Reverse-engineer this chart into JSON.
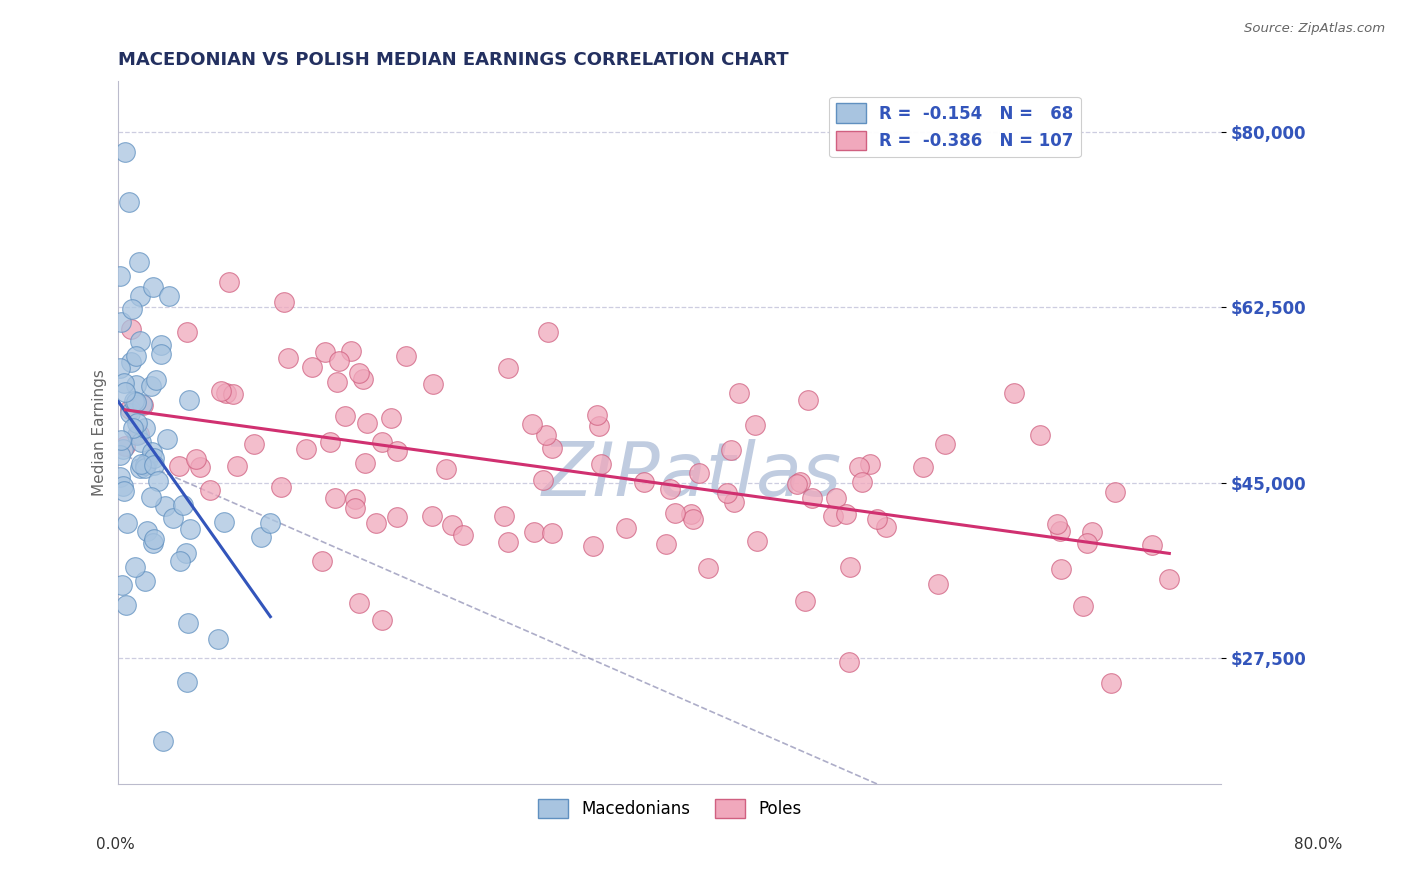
{
  "title": "MACEDONIAN VS POLISH MEDIAN EARNINGS CORRELATION CHART",
  "source_text": "Source: ZipAtlas.com",
  "ylabel": "Median Earnings",
  "y_ticks": [
    27500,
    45000,
    62500,
    80000
  ],
  "y_tick_labels": [
    "$27,500",
    "$45,000",
    "$62,500",
    "$80,000"
  ],
  "x_min": 0.0,
  "x_max": 80.0,
  "y_min": 15000,
  "y_max": 85000,
  "macedonian_color": "#a8c4e0",
  "polish_color": "#f0a8bc",
  "macedonian_edge": "#6090c0",
  "polish_edge": "#d06080",
  "trend_macedonian_color": "#3355bb",
  "trend_polish_color": "#d03070",
  "dashed_line_color": "#9999bb",
  "watermark_color": "#c0cce0",
  "title_color": "#233060",
  "tick_label_color": "#3355bb",
  "background_color": "#ffffff",
  "grid_color": "#c8c8dd"
}
